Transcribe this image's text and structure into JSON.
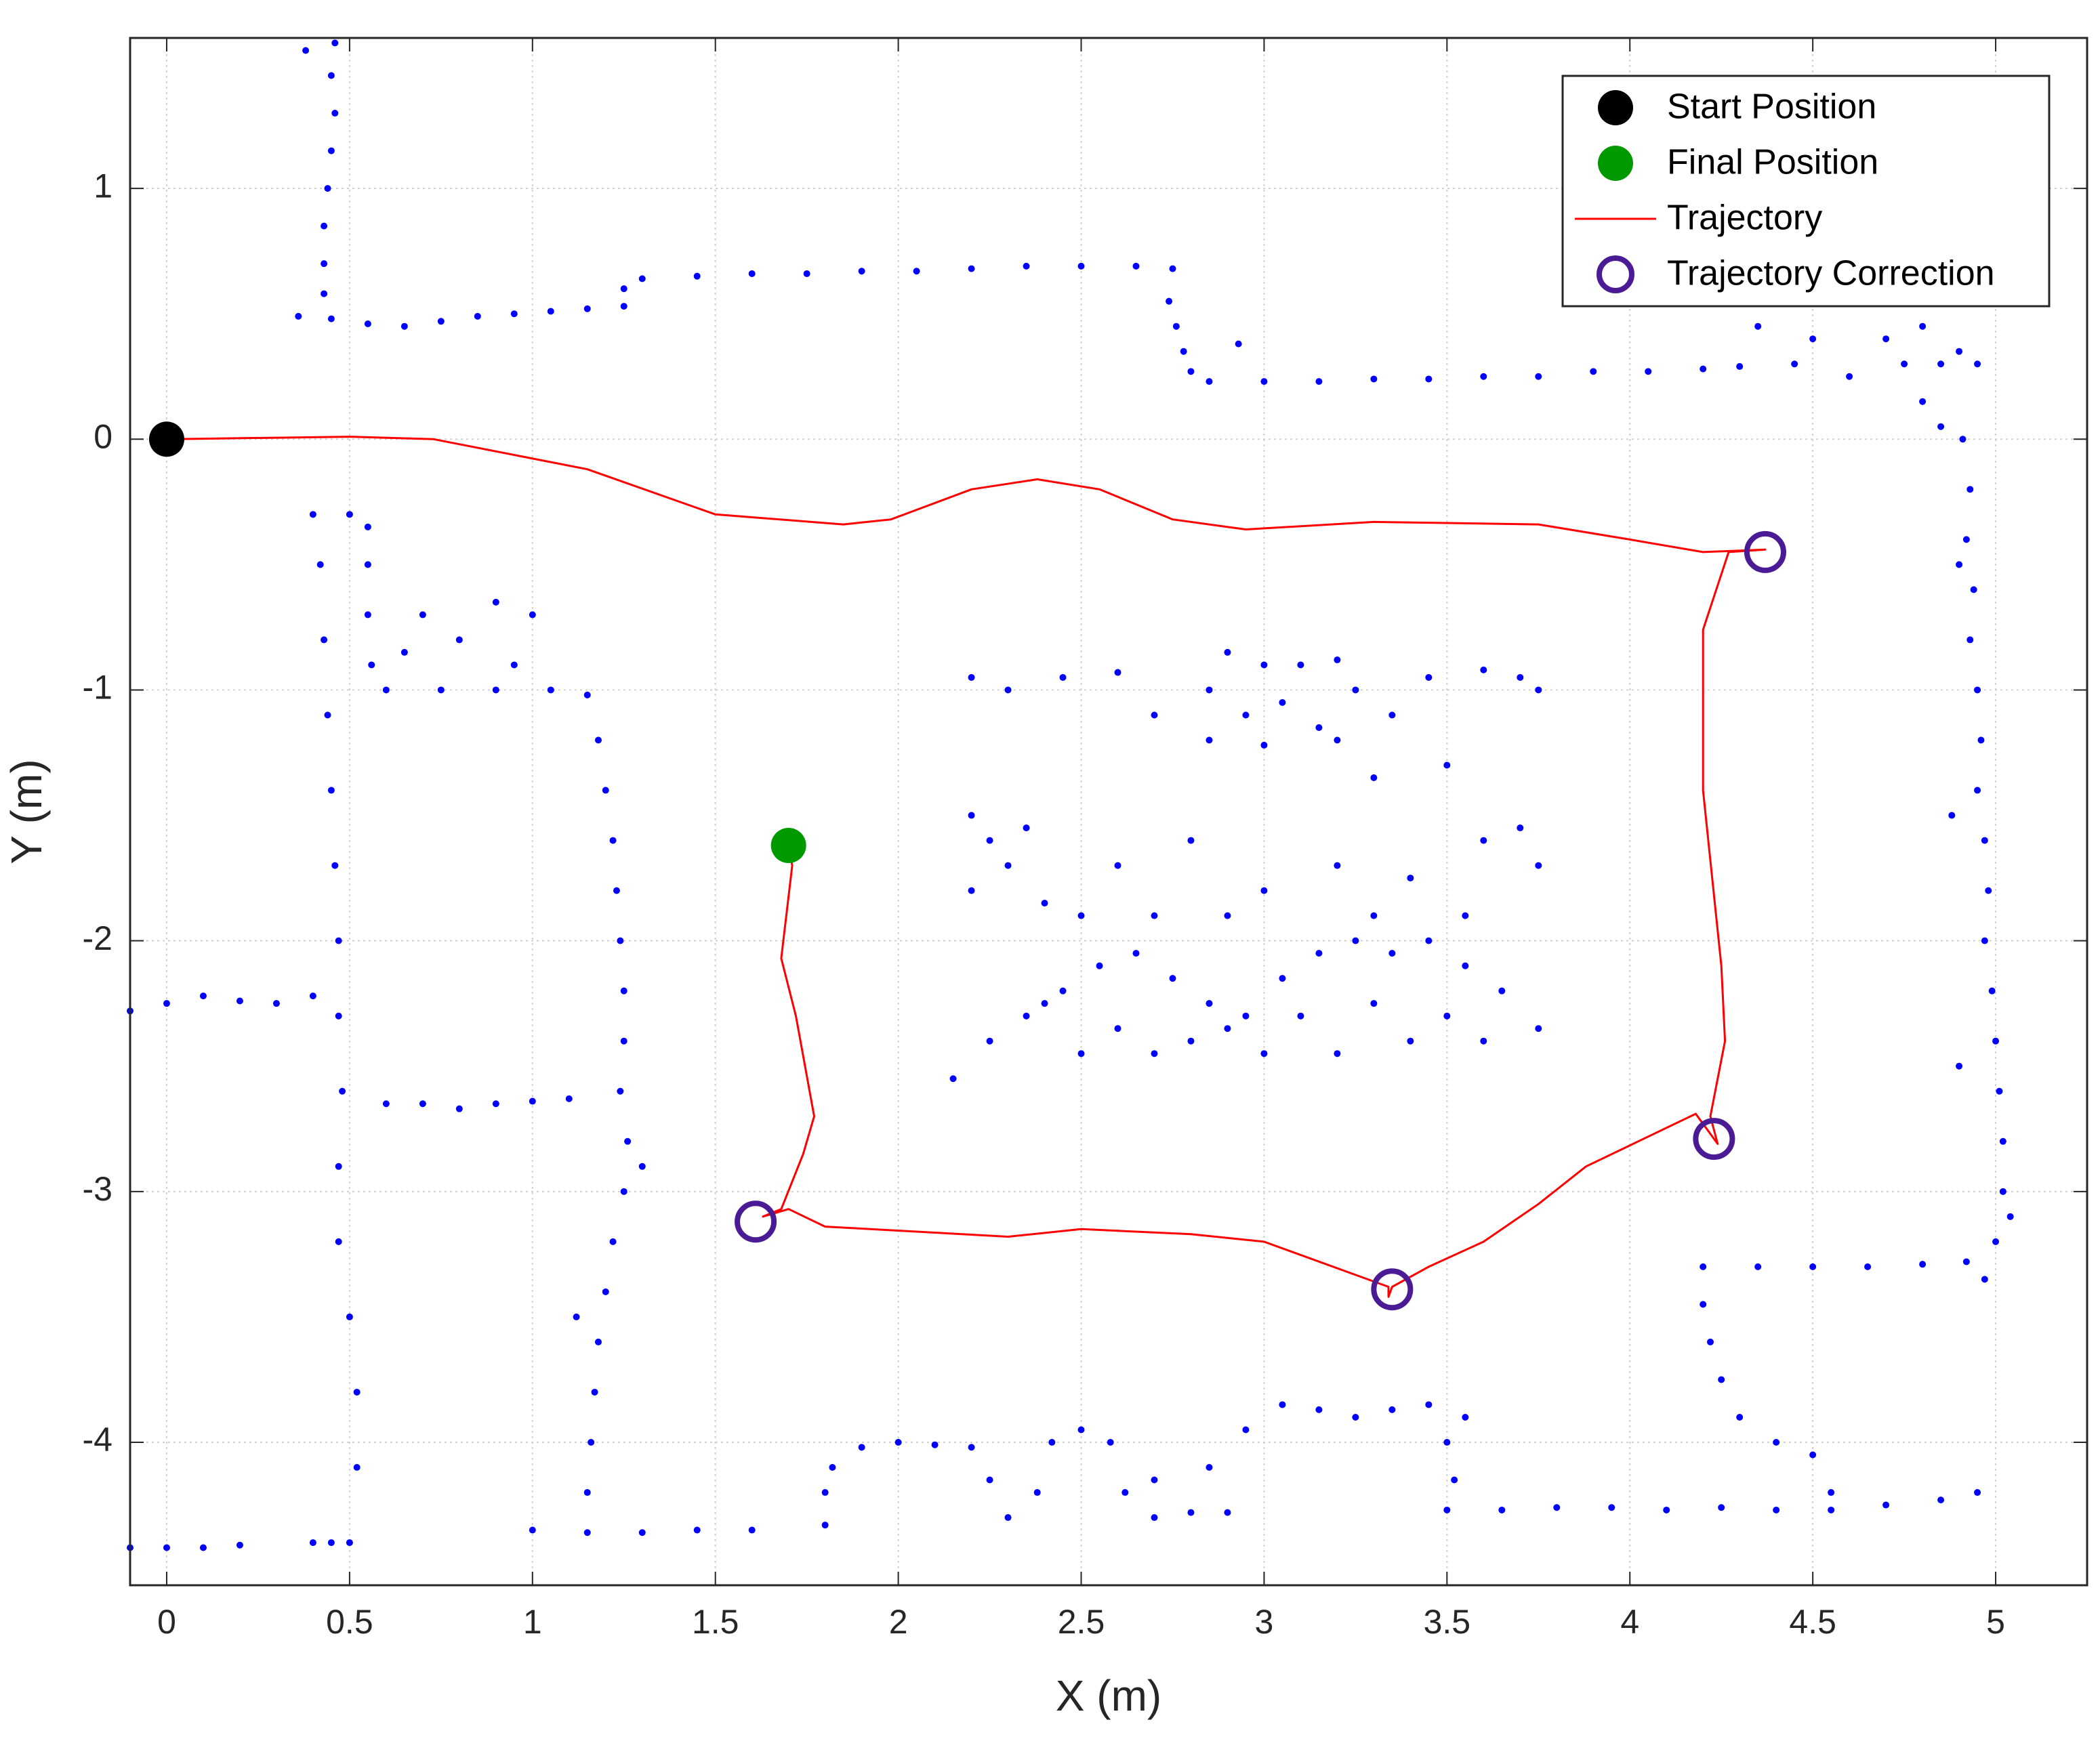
{
  "chart_data": {
    "type": "scatter",
    "xlabel": "X (m)",
    "ylabel": "Y (m)",
    "xlim": [
      -0.1,
      5.25
    ],
    "ylim": [
      -4.57,
      1.6
    ],
    "xticks": [
      0,
      0.5,
      1,
      1.5,
      2,
      2.5,
      3,
      3.5,
      4,
      4.5,
      5
    ],
    "yticks": [
      -4,
      -3,
      -2,
      -1,
      0,
      1
    ],
    "grid": true,
    "legend": "upper right",
    "series": [
      {
        "type": "scatter",
        "marker": "dot",
        "color": "#0000ff",
        "x": [
          0.46,
          0.45,
          0.46,
          0.45,
          0.44,
          0.43,
          0.43,
          0.43,
          0.38,
          0.36,
          0.45,
          0.55,
          0.65,
          0.75,
          0.85,
          0.95,
          1.05,
          1.15,
          1.25,
          1.25,
          1.3,
          1.45,
          1.6,
          1.75,
          1.9,
          2.05,
          2.2,
          2.35,
          2.5,
          2.65,
          2.75,
          2.74,
          2.76,
          2.78,
          2.8,
          2.85,
          3.0,
          3.15,
          3.3,
          3.45,
          3.6,
          3.75,
          3.9,
          4.05,
          4.2,
          4.3,
          4.35,
          4.45,
          2.93,
          4.5,
          4.6,
          4.7,
          4.8,
          4.85,
          4.75,
          4.8,
          4.85,
          4.9,
          4.95,
          4.91,
          4.93,
          4.92,
          4.94,
          4.93,
          4.95,
          4.96,
          4.95,
          4.97,
          4.98,
          4.97,
          4.99,
          5.0,
          5.01,
          5.02,
          5.02,
          5.0,
          4.97,
          4.9,
          4.88,
          5.04,
          4.9,
          4.2,
          4.35,
          4.5,
          4.65,
          4.8,
          4.92,
          4.2,
          4.22,
          4.25,
          4.3,
          4.4,
          4.5,
          4.55,
          3.5,
          3.65,
          3.8,
          3.95,
          4.1,
          4.25,
          4.4,
          4.55,
          4.7,
          4.85,
          4.95,
          3.52,
          3.5,
          1.0,
          1.15,
          1.3,
          1.45,
          1.6,
          1.8,
          1.8,
          1.82,
          1.9,
          2.0,
          2.1,
          2.2,
          2.25,
          2.3,
          2.38,
          2.42,
          2.5,
          2.58,
          2.62,
          2.7,
          2.8,
          2.9,
          2.85,
          2.95,
          3.05,
          3.15,
          3.25,
          3.35,
          3.45,
          3.55,
          2.7,
          0.4,
          0.5,
          0.55,
          0.55,
          0.55,
          0.56,
          0.6,
          0.75,
          0.9,
          1.05,
          1.15,
          1.18,
          1.2,
          1.22,
          1.23,
          1.24,
          1.25,
          1.25,
          1.24,
          1.26,
          1.25,
          1.22,
          1.2,
          1.18,
          1.17,
          1.16,
          1.15,
          1.12,
          1.3,
          0.7,
          0.8,
          0.9,
          1.0,
          0.95,
          0.65,
          0.42,
          0.43,
          0.44,
          0.45,
          0.46,
          0.47,
          0.47,
          0.48,
          0.47,
          0.47,
          0.5,
          0.52,
          0.52,
          0.5,
          0.45,
          0.4,
          -0.1,
          0.0,
          0.1,
          0.2,
          0.3,
          0.4,
          0.6,
          0.7,
          0.8,
          0.9,
          1.0,
          1.1,
          -0.1,
          0.0,
          0.1,
          0.2,
          2.9,
          3.0,
          3.1,
          3.2,
          2.85,
          2.95,
          3.05,
          3.15,
          3.25,
          2.85,
          3.0,
          3.2,
          3.35,
          2.2,
          2.3,
          2.45,
          2.6,
          2.7,
          3.6,
          3.7,
          3.75,
          3.45,
          3.5,
          3.3,
          2.2,
          2.25,
          2.3,
          2.2,
          2.35,
          2.4,
          2.5,
          2.25,
          2.35,
          2.45,
          2.55,
          2.65,
          2.75,
          2.85,
          2.6,
          2.7,
          2.8,
          2.95,
          3.05,
          3.15,
          3.25,
          3.35,
          3.45,
          3.55,
          3.65,
          3.75,
          3.6,
          3.4,
          3.2,
          3.0,
          2.9,
          3.1,
          3.3,
          3.5,
          2.5,
          2.4,
          2.15,
          2.6,
          2.8,
          3.0,
          3.2,
          3.4,
          3.6,
          3.7,
          3.75,
          2.9,
          3.3,
          3.55,
          2.7
        ],
        "y": [
          1.58,
          1.45,
          1.3,
          1.15,
          1.0,
          0.85,
          0.7,
          0.58,
          1.55,
          0.49,
          0.48,
          0.46,
          0.45,
          0.47,
          0.49,
          0.5,
          0.51,
          0.52,
          0.53,
          0.6,
          0.64,
          0.65,
          0.66,
          0.66,
          0.67,
          0.67,
          0.68,
          0.69,
          0.69,
          0.69,
          0.68,
          0.55,
          0.45,
          0.35,
          0.27,
          0.23,
          0.23,
          0.23,
          0.24,
          0.24,
          0.25,
          0.25,
          0.27,
          0.27,
          0.28,
          0.29,
          0.45,
          0.3,
          0.38,
          0.4,
          0.25,
          0.4,
          0.45,
          0.3,
          0.3,
          0.15,
          0.05,
          0.35,
          0.3,
          0.0,
          -0.2,
          -0.4,
          -0.6,
          -0.8,
          -1.0,
          -1.2,
          -1.4,
          -1.6,
          -1.8,
          -2.0,
          -2.2,
          -2.4,
          -2.6,
          -2.8,
          -3.0,
          -3.2,
          -3.35,
          -2.5,
          -1.5,
          -3.1,
          -0.5,
          -3.3,
          -3.3,
          -3.3,
          -3.3,
          -3.29,
          -3.28,
          -3.45,
          -3.6,
          -3.75,
          -3.9,
          -4.0,
          -4.05,
          -4.2,
          -4.27,
          -4.27,
          -4.26,
          -4.26,
          -4.27,
          -4.26,
          -4.27,
          -4.27,
          -4.25,
          -4.23,
          -4.2,
          -4.15,
          -4.0,
          -4.35,
          -4.36,
          -4.36,
          -4.35,
          -4.35,
          -4.33,
          -4.2,
          -4.1,
          -4.02,
          -4.0,
          -4.01,
          -4.02,
          -4.15,
          -4.3,
          -4.2,
          -4.0,
          -3.95,
          -4.0,
          -4.2,
          -4.3,
          -4.28,
          -4.28,
          -4.1,
          -3.95,
          -3.85,
          -3.87,
          -3.9,
          -3.87,
          -3.85,
          -3.9,
          -4.15,
          -0.3,
          -0.3,
          -0.35,
          -0.5,
          -0.7,
          -0.9,
          -1.0,
          -1.0,
          -1.0,
          -1.0,
          -1.02,
          -1.2,
          -1.4,
          -1.6,
          -1.8,
          -2.0,
          -2.2,
          -2.4,
          -2.6,
          -2.8,
          -3.0,
          -3.2,
          -3.4,
          -3.6,
          -3.8,
          -4.0,
          -4.2,
          -3.5,
          -2.9,
          -0.7,
          -0.8,
          -0.65,
          -0.7,
          -0.9,
          -0.85,
          -0.5,
          -0.8,
          -1.1,
          -1.4,
          -1.7,
          -2.0,
          -2.3,
          -2.6,
          -2.9,
          -3.2,
          -3.5,
          -3.8,
          -4.1,
          -4.4,
          -4.4,
          -4.4,
          -2.28,
          -2.25,
          -2.22,
          -2.24,
          -2.25,
          -2.22,
          -2.65,
          -2.65,
          -2.67,
          -2.65,
          -2.64,
          -2.63,
          -4.42,
          -4.42,
          -4.42,
          -4.41,
          -0.85,
          -0.9,
          -0.9,
          -0.88,
          -1.0,
          -1.1,
          -1.05,
          -1.15,
          -1.0,
          -1.2,
          -1.22,
          -1.2,
          -1.1,
          -0.95,
          -1.0,
          -0.95,
          -0.93,
          -1.1,
          -0.92,
          -0.95,
          -1.0,
          -0.95,
          -1.3,
          -1.35,
          -1.5,
          -1.6,
          -1.7,
          -1.8,
          -1.55,
          -1.85,
          -1.9,
          -2.4,
          -2.3,
          -2.2,
          -2.1,
          -2.05,
          -2.15,
          -2.25,
          -2.35,
          -2.45,
          -2.4,
          -2.3,
          -2.15,
          -2.05,
          -2.0,
          -2.05,
          -2.0,
          -2.1,
          -2.2,
          -2.35,
          -2.4,
          -2.4,
          -2.45,
          -2.45,
          -2.35,
          -2.3,
          -2.25,
          -2.3,
          -2.45,
          -2.25,
          -2.55,
          -1.7,
          -1.6,
          -1.8,
          -1.7,
          -1.75,
          -1.6,
          -1.55,
          -1.7,
          -1.9,
          -1.9,
          -1.9,
          -1.9
        ]
      },
      {
        "name": "Start Position",
        "type": "scatter",
        "marker": "filled",
        "color": "#000000",
        "x": [
          0
        ],
        "y": [
          0
        ]
      },
      {
        "name": "Final Position",
        "type": "scatter",
        "marker": "filled",
        "color": "#009a00",
        "x": [
          1.7
        ],
        "y": [
          -1.62
        ]
      },
      {
        "name": "Trajectory",
        "type": "line",
        "color": "#ff0000",
        "x": [
          0,
          0.5,
          0.73,
          1.15,
          1.5,
          1.85,
          1.98,
          2.2,
          2.38,
          2.55,
          2.75,
          2.95,
          3.3,
          3.75,
          4.0,
          4.2,
          4.37,
          4.27,
          4.2,
          4.2,
          4.25,
          4.26,
          4.22,
          4.24,
          4.18,
          3.88,
          3.75,
          3.6,
          3.45,
          3.35,
          3.34,
          3.34,
          3.0,
          2.8,
          2.5,
          2.3,
          1.8,
          1.7,
          1.63,
          1.68,
          1.74,
          1.77,
          1.72,
          1.68,
          1.71,
          1.7
        ],
        "y": [
          0,
          0.01,
          0,
          -0.12,
          -0.3,
          -0.34,
          -0.32,
          -0.2,
          -0.16,
          -0.2,
          -0.32,
          -0.36,
          -0.33,
          -0.34,
          -0.4,
          -0.45,
          -0.44,
          -0.45,
          -0.76,
          -1.4,
          -2.1,
          -2.4,
          -2.7,
          -2.81,
          -2.69,
          -2.9,
          -3.05,
          -3.2,
          -3.3,
          -3.38,
          -3.42,
          -3.38,
          -3.2,
          -3.17,
          -3.15,
          -3.18,
          -3.14,
          -3.07,
          -3.1,
          -3.07,
          -2.85,
          -2.7,
          -2.3,
          -2.07,
          -1.7,
          -1.62
        ]
      },
      {
        "name": "Trajectory Correction",
        "type": "scatter",
        "marker": "open",
        "color": "#4b1b96",
        "x": [
          4.37,
          4.23,
          3.35,
          1.61
        ],
        "y": [
          -0.45,
          -2.79,
          -3.39,
          -3.12
        ]
      }
    ]
  }
}
